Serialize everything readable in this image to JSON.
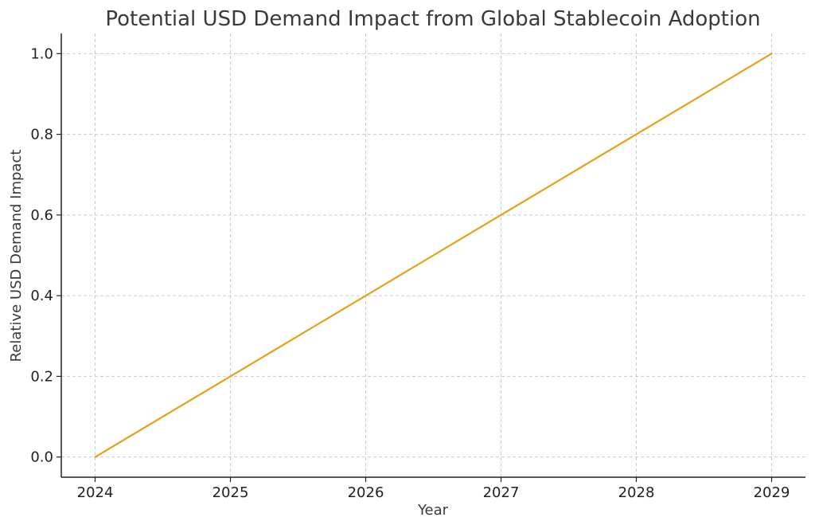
{
  "chart_data": {
    "type": "line",
    "title": "Potential USD Demand Impact from Global Stablecoin Adoption",
    "xlabel": "Year",
    "ylabel": "Relative USD Demand Impact",
    "x": [
      2024,
      2025,
      2026,
      2027,
      2028,
      2029
    ],
    "series": [
      {
        "values": [
          0.0,
          0.2,
          0.4,
          0.6,
          0.8,
          1.0
        ],
        "color": "#e6a11a"
      }
    ],
    "x_ticks": [
      "2024",
      "2025",
      "2026",
      "2027",
      "2028",
      "2029"
    ],
    "y_ticks": [
      "0.0",
      "0.2",
      "0.4",
      "0.6",
      "0.8",
      "1.0"
    ],
    "xlim": [
      2023.75,
      2029.25
    ],
    "ylim": [
      -0.05,
      1.05
    ],
    "grid": true,
    "legend": "none"
  }
}
